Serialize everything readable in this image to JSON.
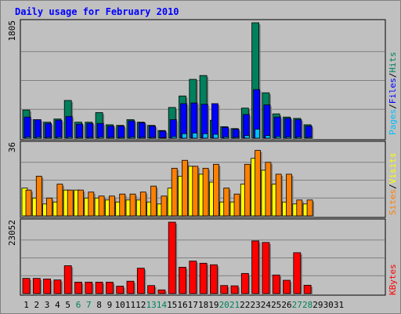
{
  "title": "Daily usage for February 2010",
  "colors": {
    "hits": "#00805c",
    "files": "#0000ff",
    "pages": "#00c0ff",
    "visits": "#ffff00",
    "sites": "#ff8000",
    "kbytes": "#ff0000",
    "title": "#0000ff",
    "weekend_label": "#00805c",
    "panel_bg": "#c0c0c0"
  },
  "chart_data": [
    {
      "type": "bar",
      "panel": "hits-files-pages",
      "ylabel_max": "1805",
      "ymax": 1805,
      "legend": [
        "Pages",
        "Files",
        "Hits"
      ],
      "categories": [
        "1",
        "2",
        "3",
        "4",
        "5",
        "6",
        "7",
        "8",
        "9",
        "10",
        "11",
        "12",
        "13",
        "14",
        "15",
        "16",
        "17",
        "18",
        "19",
        "20",
        "21",
        "22",
        "23",
        "24",
        "25",
        "26",
        "27",
        "28",
        "29",
        "30",
        "31"
      ],
      "series": [
        {
          "name": "Hits",
          "values": [
            440,
            290,
            250,
            300,
            590,
            250,
            250,
            400,
            210,
            200,
            290,
            250,
            200,
            120,
            480,
            660,
            920,
            980,
            280,
            180,
            150,
            470,
            1805,
            710,
            380,
            330,
            310,
            210,
            0,
            0,
            0
          ]
        },
        {
          "name": "Files",
          "values": [
            330,
            290,
            230,
            280,
            340,
            220,
            230,
            230,
            190,
            190,
            270,
            240,
            190,
            110,
            290,
            540,
            550,
            530,
            540,
            170,
            140,
            370,
            760,
            520,
            330,
            310,
            290,
            190,
            0,
            0,
            0
          ]
        },
        {
          "name": "Pages",
          "values": [
            20,
            20,
            15,
            20,
            20,
            15,
            15,
            20,
            15,
            15,
            20,
            15,
            15,
            10,
            25,
            70,
            80,
            70,
            60,
            20,
            15,
            40,
            140,
            40,
            25,
            20,
            20,
            15,
            0,
            0,
            0
          ]
        }
      ]
    },
    {
      "type": "bar",
      "panel": "visits-sites",
      "ylabel_max": "36",
      "ymax": 36,
      "legend": [
        "Sites",
        "Visits"
      ],
      "categories": [
        "1",
        "2",
        "3",
        "4",
        "5",
        "6",
        "7",
        "8",
        "9",
        "10",
        "11",
        "12",
        "13",
        "14",
        "15",
        "16",
        "17",
        "18",
        "19",
        "20",
        "21",
        "22",
        "23",
        "24",
        "25",
        "26",
        "27",
        "28",
        "29",
        "30",
        "31"
      ],
      "series": [
        {
          "name": "Visits",
          "values": [
            14,
            9,
            6,
            7,
            13,
            13,
            9,
            9,
            8,
            7,
            8,
            8,
            7,
            6,
            14,
            20,
            25,
            21,
            17,
            7,
            7,
            16,
            29,
            23,
            16,
            7,
            6,
            6,
            0,
            0,
            0
          ]
        },
        {
          "name": "Sites",
          "values": [
            13,
            20,
            9,
            16,
            13,
            13,
            12,
            10,
            10,
            11,
            11,
            12,
            15,
            10,
            24,
            28,
            25,
            24,
            26,
            14,
            11,
            26,
            33,
            27,
            21,
            21,
            8,
            8,
            0,
            0,
            0
          ]
        }
      ]
    },
    {
      "type": "bar",
      "panel": "kbytes",
      "ylabel_max": "23052",
      "ymax": 23052,
      "legend": [
        "KBytes"
      ],
      "categories": [
        "1",
        "2",
        "3",
        "4",
        "5",
        "6",
        "7",
        "8",
        "9",
        "10",
        "11",
        "12",
        "13",
        "14",
        "15",
        "16",
        "17",
        "18",
        "19",
        "20",
        "21",
        "22",
        "23",
        "24",
        "25",
        "26",
        "27",
        "28",
        "29",
        "30",
        "31"
      ],
      "series": [
        {
          "name": "KBytes",
          "values": [
            4900,
            4900,
            4700,
            4400,
            9000,
            3700,
            3700,
            3700,
            3700,
            2400,
            4000,
            8200,
            2600,
            1200,
            23052,
            8500,
            10500,
            9800,
            9300,
            2600,
            2500,
            6500,
            17000,
            16500,
            6000,
            4300,
            13200,
            2700,
            0,
            0,
            0
          ]
        }
      ]
    }
  ],
  "x_labels": [
    "1",
    "2",
    "3",
    "4",
    "5",
    "6",
    "7",
    "8",
    "9",
    "10",
    "11",
    "12",
    "13",
    "14",
    "15",
    "16",
    "17",
    "18",
    "19",
    "20",
    "21",
    "22",
    "23",
    "24",
    "25",
    "26",
    "27",
    "28",
    "29",
    "30",
    "31"
  ],
  "weekend_days": [
    "6",
    "7",
    "13",
    "14",
    "20",
    "21",
    "27",
    "28"
  ]
}
